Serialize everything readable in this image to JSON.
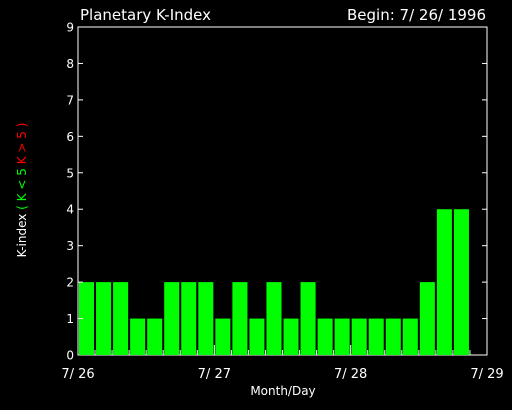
{
  "header": {
    "title": "Planetary K-Index",
    "begin": "Begin: 7/ 26/ 1996"
  },
  "chart_data": {
    "type": "bar",
    "title": "Planetary K-Index",
    "xlabel": "Month/Day",
    "ylabel": {
      "prefix": "K-index",
      "paren_open": "(",
      "green": "K < 5",
      "red": "K > 5",
      "paren_close": ")"
    },
    "ylim": [
      0,
      9
    ],
    "y_ticks": [
      "0",
      "1",
      "2",
      "3",
      "4",
      "5",
      "6",
      "7",
      "8",
      "9"
    ],
    "x_tick_labels": [
      "7/ 26",
      "7/ 27",
      "7/ 28",
      "7/ 29"
    ],
    "bins_per_day": 8,
    "values": [
      2,
      2,
      2,
      1,
      1,
      2,
      2,
      2,
      1,
      2,
      1,
      2,
      1,
      2,
      1,
      1,
      1,
      1,
      1,
      1,
      2,
      4,
      4
    ],
    "colors": {
      "low": "#00ff00",
      "high": "#ff0000",
      "axis": "#ffffff",
      "background": "#000000"
    }
  }
}
